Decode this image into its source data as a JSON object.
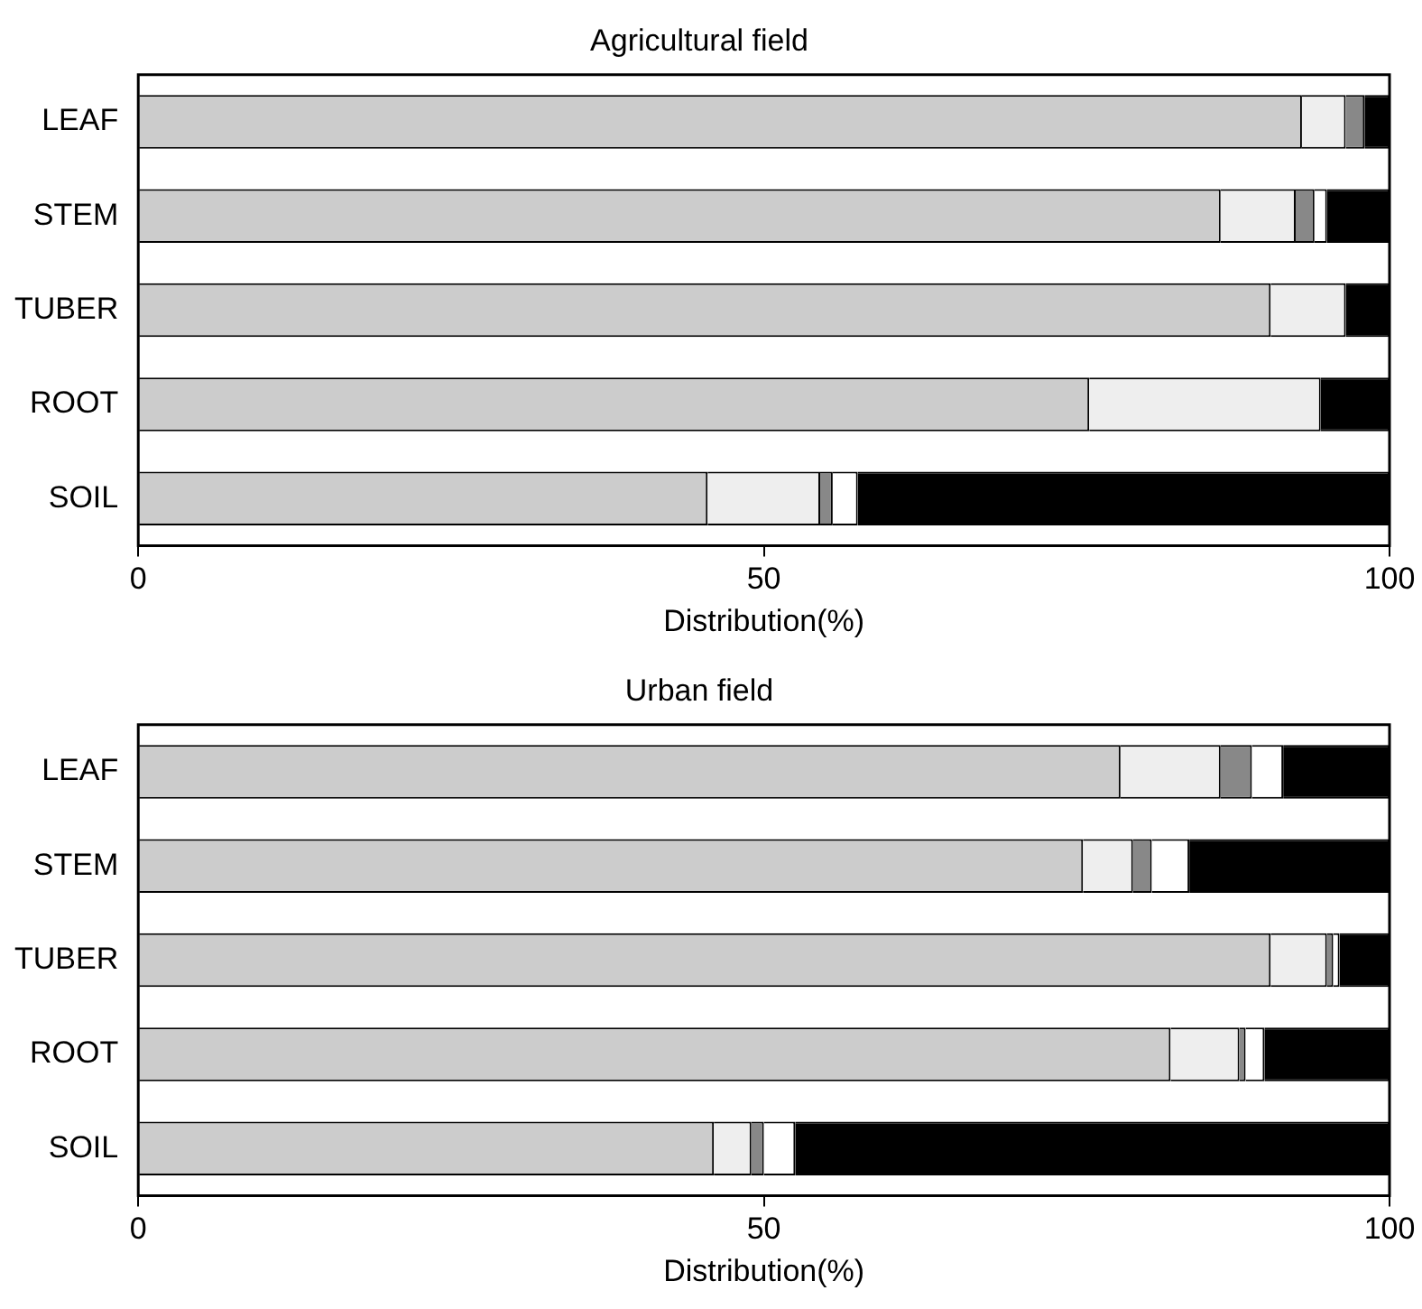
{
  "chart_data": [
    {
      "type": "bar",
      "orientation": "horizontal",
      "stacked": true,
      "title": "Agricultural field",
      "xlabel": "Distribution(%)",
      "categories": [
        "LEAF",
        "STEM",
        "TUBER",
        "ROOT",
        "SOIL"
      ],
      "xlim": [
        0,
        100
      ],
      "xticks": [
        0,
        50,
        100
      ],
      "grid": false,
      "legend": false,
      "series": [
        {
          "color": "#cccccc",
          "values": [
            93,
            86.5,
            90.5,
            76,
            45.5
          ]
        },
        {
          "color": "#eeeeee",
          "values": [
            3.5,
            6,
            6,
            18.5,
            9
          ]
        },
        {
          "color": "#888888",
          "values": [
            1.5,
            1.5,
            0,
            0,
            1
          ]
        },
        {
          "color": "#ffffff",
          "values": [
            0,
            1,
            0,
            0,
            2
          ]
        },
        {
          "color": "#000000",
          "values": [
            2,
            5,
            3.5,
            5.5,
            42.5
          ]
        }
      ]
    },
    {
      "type": "bar",
      "orientation": "horizontal",
      "stacked": true,
      "title": "Urban field",
      "xlabel": "Distribution(%)",
      "categories": [
        "LEAF",
        "STEM",
        "TUBER",
        "ROOT",
        "SOIL"
      ],
      "xlim": [
        0,
        100
      ],
      "xticks": [
        0,
        50,
        100
      ],
      "grid": false,
      "legend": false,
      "series": [
        {
          "color": "#cccccc",
          "values": [
            78.5,
            75.5,
            90.5,
            82.5,
            46
          ]
        },
        {
          "color": "#eeeeee",
          "values": [
            8,
            4,
            4.5,
            5.5,
            3
          ]
        },
        {
          "color": "#888888",
          "values": [
            2.5,
            1.5,
            0.5,
            0.5,
            1
          ]
        },
        {
          "color": "#ffffff",
          "values": [
            2.5,
            3,
            0.5,
            1.5,
            2.5
          ]
        },
        {
          "color": "#000000",
          "values": [
            8.5,
            16,
            4,
            10,
            47.5
          ]
        }
      ]
    }
  ]
}
